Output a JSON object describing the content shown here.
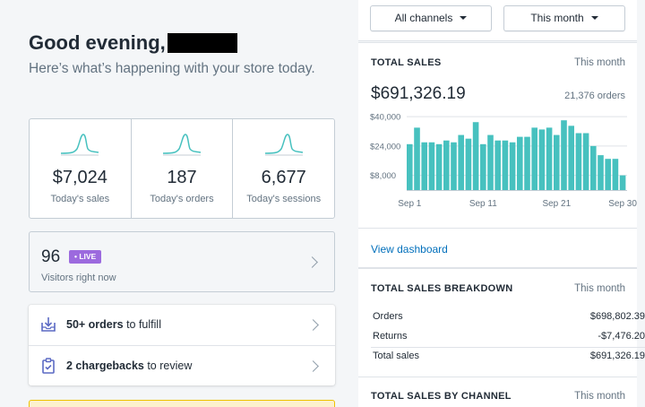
{
  "greeting": {
    "title": "Good evening,",
    "subtitle": "Here’s what’s happening with your store today."
  },
  "stats": [
    {
      "value": "$7,024",
      "label": "Today's sales"
    },
    {
      "value": "187",
      "label": "Today's orders"
    },
    {
      "value": "6,677",
      "label": "Today's sessions"
    }
  ],
  "visitors": {
    "count": "96",
    "live_badge": "• LIVE",
    "label": "Visitors right now"
  },
  "tasks": [
    {
      "bold": "50+ orders",
      "rest": " to fulfill",
      "icon": "download-box-icon"
    },
    {
      "bold": "2 chargebacks",
      "rest": " to review",
      "icon": "clipboard-check-icon"
    }
  ],
  "filters": {
    "channels": "All channels",
    "period": "This month"
  },
  "total_sales": {
    "title": "TOTAL SALES",
    "period": "This month",
    "amount": "$691,326.19",
    "orders": "21,376 orders",
    "view_dashboard": "View dashboard"
  },
  "breakdown": {
    "title": "TOTAL SALES BREAKDOWN",
    "period": "This month",
    "rows": [
      {
        "label": "Orders",
        "amount": "$698,802.39"
      },
      {
        "label": "Returns",
        "amount": "-$7,476.20"
      },
      {
        "label": "Total sales",
        "amount": "$691,326.19"
      }
    ]
  },
  "by_channel": {
    "title": "TOTAL SALES BY CHANNEL",
    "period": "This month"
  },
  "colors": {
    "bar": "#47c1bf",
    "live": "#9c6ade",
    "link": "#006fbb"
  },
  "chart_data": {
    "type": "bar",
    "y_ticks": [
      "$40,000",
      "$24,000",
      "$8,000"
    ],
    "y_tick_values": [
      40000,
      24000,
      8000
    ],
    "x_ticks": [
      "Sep 1",
      "Sep 11",
      "Sep 21",
      "Sep 30"
    ],
    "categories": [
      "Sep 1",
      "Sep 2",
      "Sep 3",
      "Sep 4",
      "Sep 5",
      "Sep 6",
      "Sep 7",
      "Sep 8",
      "Sep 9",
      "Sep 10",
      "Sep 11",
      "Sep 12",
      "Sep 13",
      "Sep 14",
      "Sep 15",
      "Sep 16",
      "Sep 17",
      "Sep 18",
      "Sep 19",
      "Sep 20",
      "Sep 21",
      "Sep 22",
      "Sep 23",
      "Sep 24",
      "Sep 25",
      "Sep 26",
      "Sep 27",
      "Sep 28",
      "Sep 29",
      "Sep 30"
    ],
    "values": [
      25000,
      34000,
      26000,
      26000,
      25000,
      27000,
      26000,
      30000,
      28000,
      37000,
      25000,
      30000,
      27000,
      27000,
      26000,
      29000,
      29000,
      34000,
      33000,
      34000,
      30000,
      38000,
      35000,
      31000,
      31000,
      24000,
      19000,
      17000,
      17000,
      8000
    ],
    "ylim": [
      0,
      42000
    ],
    "grid": true
  }
}
